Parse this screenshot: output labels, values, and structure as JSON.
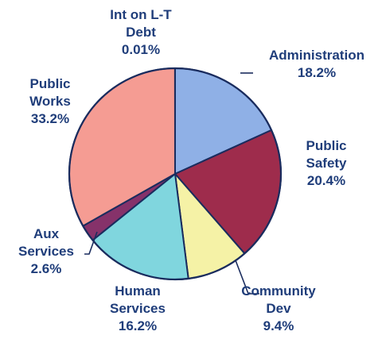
{
  "chart_data": {
    "type": "pie",
    "title": "",
    "slices": [
      {
        "label_lines": [
          "Administration"
        ],
        "value_text": "18.2%",
        "value": 18.2,
        "color": "#8fb0e6"
      },
      {
        "label_lines": [
          "Public",
          "Safety"
        ],
        "value_text": "20.4%",
        "value": 20.4,
        "color": "#9e2c4c"
      },
      {
        "label_lines": [
          "Community",
          "Dev"
        ],
        "value_text": "9.4%",
        "value": 9.4,
        "color": "#f5f2a6"
      },
      {
        "label_lines": [
          "Human",
          "Services"
        ],
        "value_text": "16.2%",
        "value": 16.2,
        "color": "#80d6de"
      },
      {
        "label_lines": [
          "Aux",
          "Services"
        ],
        "value_text": "2.6%",
        "value": 2.6,
        "color": "#86326a"
      },
      {
        "label_lines": [
          "Public",
          "Works"
        ],
        "value_text": "33.2%",
        "value": 33.2,
        "color": "#f59c93"
      },
      {
        "label_lines": [
          "Int on L-T",
          "Debt"
        ],
        "value_text": "0.01%",
        "value": 0.01,
        "color": "#1e3470"
      }
    ],
    "text_color": "#1f3d7a",
    "legend": "none"
  }
}
